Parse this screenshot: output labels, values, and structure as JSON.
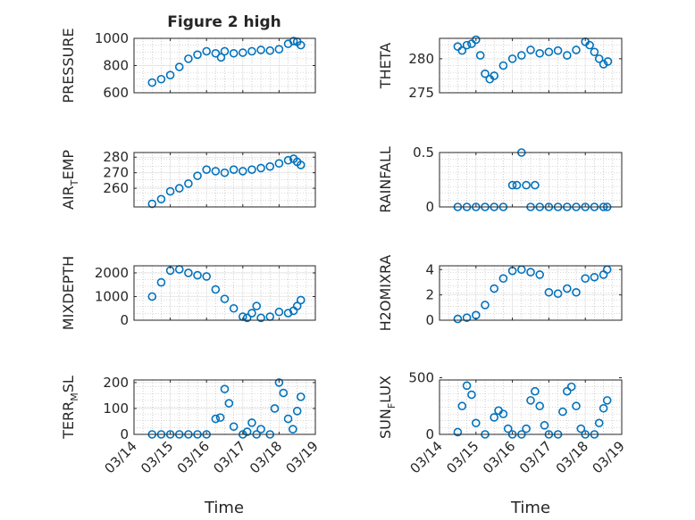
{
  "figure": {
    "title": "Figure 2 high",
    "x_axis_label": "Time",
    "x_tick_labels": [
      "03/14",
      "03/15",
      "03/16",
      "03/17",
      "03/18",
      "03/19"
    ]
  },
  "colors": {
    "marker": "#0072BD",
    "axis": "#262626",
    "grid": "#b0b0b0"
  },
  "chart_data": [
    {
      "type": "scatter",
      "ylabel": "PRESSURE",
      "ylim": [
        600,
        1000
      ],
      "yticks": [
        600,
        800,
        1000
      ],
      "grid": true,
      "x_dates": [
        "03/14 12:00",
        "03/14 18:00",
        "03/15 00:00",
        "03/15 06:00",
        "03/15 12:00",
        "03/15 18:00",
        "03/16 00:00",
        "03/16 06:00",
        "03/16 09:00",
        "03/16 12:00",
        "03/16 18:00",
        "03/17 00:00",
        "03/17 06:00",
        "03/17 12:00",
        "03/17 18:00",
        "03/18 00:00",
        "03/18 06:00",
        "03/18 09:00",
        "03/18 12:00",
        "03/18 15:00"
      ],
      "x": [
        0.5,
        0.75,
        1.0,
        1.25,
        1.5,
        1.75,
        2.0,
        2.25,
        2.4,
        2.5,
        2.75,
        3.0,
        3.25,
        3.5,
        3.75,
        4.0,
        4.25,
        4.4,
        4.5,
        4.6
      ],
      "y": [
        675,
        700,
        730,
        790,
        850,
        880,
        905,
        890,
        860,
        905,
        890,
        895,
        905,
        915,
        910,
        920,
        960,
        980,
        975,
        950
      ]
    },
    {
      "type": "scatter",
      "ylabel": "THETA",
      "ylim": [
        275,
        283
      ],
      "yticks": [
        275,
        280
      ],
      "grid": true,
      "x_dates": [
        "03/14 12:00",
        "03/14 15:00",
        "03/14 18:00",
        "03/14 21:00",
        "03/15 00:00",
        "03/15 03:00",
        "03/15 06:00",
        "03/15 09:00",
        "03/15 12:00",
        "03/15 18:00",
        "03/16 00:00",
        "03/16 06:00",
        "03/16 12:00",
        "03/16 18:00",
        "03/17 00:00",
        "03/17 06:00",
        "03/17 12:00",
        "03/17 18:00",
        "03/18 00:00",
        "03/18 03:00",
        "03/18 06:00",
        "03/18 09:00",
        "03/18 12:00",
        "03/18 15:00"
      ],
      "x": [
        0.5,
        0.62,
        0.75,
        0.88,
        1.0,
        1.12,
        1.25,
        1.38,
        1.5,
        1.75,
        2.0,
        2.25,
        2.5,
        2.75,
        3.0,
        3.25,
        3.5,
        3.75,
        4.0,
        4.12,
        4.25,
        4.38,
        4.5,
        4.62
      ],
      "y": [
        281.8,
        281.2,
        282,
        282.2,
        282.8,
        280.5,
        277.8,
        277,
        277.5,
        279,
        280,
        280.5,
        281.3,
        280.8,
        281,
        281.2,
        280.5,
        281.3,
        282.5,
        282,
        281,
        280,
        279.2,
        279.6
      ]
    },
    {
      "type": "scatter",
      "ylabel": "AIR_TEMP",
      "ylim": [
        248,
        283
      ],
      "yticks": [
        260,
        270,
        280
      ],
      "grid": true,
      "x_dates": [
        "03/14 12:00",
        "03/14 18:00",
        "03/15 00:00",
        "03/15 06:00",
        "03/15 12:00",
        "03/15 18:00",
        "03/16 00:00",
        "03/16 06:00",
        "03/16 12:00",
        "03/16 18:00",
        "03/17 00:00",
        "03/17 06:00",
        "03/17 12:00",
        "03/17 18:00",
        "03/18 00:00",
        "03/18 06:00",
        "03/18 09:00",
        "03/18 12:00",
        "03/18 15:00"
      ],
      "x": [
        0.5,
        0.75,
        1.0,
        1.25,
        1.5,
        1.75,
        2.0,
        2.25,
        2.5,
        2.75,
        3.0,
        3.25,
        3.5,
        3.75,
        4.0,
        4.25,
        4.4,
        4.5,
        4.6
      ],
      "y": [
        250,
        253,
        258,
        260,
        263,
        268,
        272,
        271,
        270,
        272,
        271,
        272,
        273,
        274,
        276,
        278,
        279,
        277,
        275
      ]
    },
    {
      "type": "scatter",
      "ylabel": "RAINFALL",
      "ylim": [
        0,
        0.5
      ],
      "yticks": [
        0,
        0.5
      ],
      "grid": true,
      "x_dates": [
        "03/14 12:00",
        "03/14 18:00",
        "03/15 00:00",
        "03/15 06:00",
        "03/15 12:00",
        "03/15 18:00",
        "03/16 00:00",
        "03/16 03:00",
        "03/16 06:00",
        "03/16 09:00",
        "03/16 12:00",
        "03/16 15:00",
        "03/16 18:00",
        "03/17 00:00",
        "03/17 06:00",
        "03/17 12:00",
        "03/17 18:00",
        "03/18 00:00",
        "03/18 06:00",
        "03/18 12:00",
        "03/18 15:00"
      ],
      "x": [
        0.5,
        0.75,
        1.0,
        1.25,
        1.5,
        1.75,
        2.0,
        2.12,
        2.25,
        2.38,
        2.5,
        2.62,
        2.75,
        3.0,
        3.25,
        3.5,
        3.75,
        4.0,
        4.25,
        4.5,
        4.6
      ],
      "y": [
        0,
        0,
        0,
        0,
        0,
        0,
        0.2,
        0.2,
        0.5,
        0.2,
        0,
        0.2,
        0,
        0,
        0,
        0,
        0,
        0,
        0,
        0,
        0
      ]
    },
    {
      "type": "scatter",
      "ylabel": "MIXDEPTH",
      "ylim": [
        0,
        2300
      ],
      "yticks": [
        0,
        1000,
        2000
      ],
      "grid": true,
      "x_dates": [
        "03/14 12:00",
        "03/14 18:00",
        "03/15 00:00",
        "03/15 06:00",
        "03/15 12:00",
        "03/15 18:00",
        "03/16 00:00",
        "03/16 06:00",
        "03/16 12:00",
        "03/16 18:00",
        "03/17 00:00",
        "03/17 03:00",
        "03/17 06:00",
        "03/17 09:00",
        "03/17 12:00",
        "03/17 18:00",
        "03/18 00:00",
        "03/18 06:00",
        "03/18 09:00",
        "03/18 12:00",
        "03/18 15:00"
      ],
      "x": [
        0.5,
        0.75,
        1.0,
        1.25,
        1.5,
        1.75,
        2.0,
        2.25,
        2.5,
        2.75,
        3.0,
        3.12,
        3.25,
        3.38,
        3.5,
        3.75,
        4.0,
        4.25,
        4.4,
        4.5,
        4.6
      ],
      "y": [
        1000,
        1600,
        2100,
        2150,
        2000,
        1900,
        1850,
        1300,
        900,
        500,
        150,
        100,
        300,
        600,
        100,
        150,
        350,
        300,
        400,
        600,
        850
      ]
    },
    {
      "type": "scatter",
      "ylabel": "H2OMIXRA",
      "ylim": [
        0,
        4.3
      ],
      "yticks": [
        0,
        2,
        4
      ],
      "grid": true,
      "x_dates": [
        "03/14 12:00",
        "03/14 18:00",
        "03/15 00:00",
        "03/15 06:00",
        "03/15 12:00",
        "03/15 18:00",
        "03/16 00:00",
        "03/16 06:00",
        "03/16 12:00",
        "03/16 18:00",
        "03/17 00:00",
        "03/17 06:00",
        "03/17 12:00",
        "03/17 18:00",
        "03/18 00:00",
        "03/18 06:00",
        "03/18 12:00",
        "03/18 15:00"
      ],
      "x": [
        0.5,
        0.75,
        1.0,
        1.25,
        1.5,
        1.75,
        2.0,
        2.25,
        2.5,
        2.75,
        3.0,
        3.25,
        3.5,
        3.75,
        4.0,
        4.25,
        4.5,
        4.6
      ],
      "y": [
        0.1,
        0.2,
        0.4,
        1.2,
        2.5,
        3.3,
        3.9,
        4.0,
        3.8,
        3.6,
        2.2,
        2.1,
        2.5,
        2.2,
        3.3,
        3.4,
        3.6,
        4.0
      ]
    },
    {
      "type": "scatter",
      "ylabel": "TERR_MSL",
      "ylim": [
        0,
        210
      ],
      "yticks": [
        0,
        100,
        200
      ],
      "grid": true,
      "x_dates": [
        "03/14 12:00",
        "03/14 18:00",
        "03/15 00:00",
        "03/15 06:00",
        "03/15 12:00",
        "03/15 18:00",
        "03/16 00:00",
        "03/16 06:00",
        "03/16 09:00",
        "03/16 12:00",
        "03/16 15:00",
        "03/16 18:00",
        "03/17 00:00",
        "03/17 03:00",
        "03/17 06:00",
        "03/17 09:00",
        "03/17 12:00",
        "03/17 18:00",
        "03/17 21:00",
        "03/18 00:00",
        "03/18 03:00",
        "03/18 06:00",
        "03/18 09:00",
        "03/18 12:00",
        "03/18 15:00"
      ],
      "x": [
        0.5,
        0.75,
        1.0,
        1.25,
        1.5,
        1.75,
        2.0,
        2.25,
        2.38,
        2.5,
        2.62,
        2.75,
        3.0,
        3.12,
        3.25,
        3.38,
        3.5,
        3.75,
        3.88,
        4.0,
        4.12,
        4.25,
        4.38,
        4.5,
        4.6
      ],
      "y": [
        0,
        0,
        0,
        0,
        0,
        0,
        0,
        60,
        65,
        175,
        120,
        30,
        0,
        10,
        45,
        0,
        20,
        0,
        100,
        200,
        160,
        60,
        20,
        90,
        145
      ]
    },
    {
      "type": "scatter",
      "ylabel": "SUN_FLUX",
      "ylim": [
        0,
        480
      ],
      "yticks": [
        0,
        500
      ],
      "grid": true,
      "x_dates": [
        "03/14 12:00",
        "03/14 15:00",
        "03/14 18:00",
        "03/14 21:00",
        "03/15 00:00",
        "03/15 06:00",
        "03/15 12:00",
        "03/15 15:00",
        "03/15 18:00",
        "03/15 21:00",
        "03/16 00:00",
        "03/16 06:00",
        "03/16 09:00",
        "03/16 12:00",
        "03/16 15:00",
        "03/16 18:00",
        "03/16 21:00",
        "03/17 00:00",
        "03/17 06:00",
        "03/17 09:00",
        "03/17 12:00",
        "03/17 15:00",
        "03/17 18:00",
        "03/17 21:00",
        "03/18 00:00",
        "03/18 06:00",
        "03/18 09:00",
        "03/18 12:00",
        "03/18 15:00"
      ],
      "x": [
        0.5,
        0.62,
        0.75,
        0.88,
        1.0,
        1.25,
        1.5,
        1.62,
        1.75,
        1.88,
        2.0,
        2.25,
        2.38,
        2.5,
        2.62,
        2.75,
        2.88,
        3.0,
        3.25,
        3.38,
        3.5,
        3.62,
        3.75,
        3.88,
        4.0,
        4.25,
        4.38,
        4.5,
        4.6
      ],
      "y": [
        20,
        250,
        430,
        350,
        100,
        0,
        150,
        210,
        180,
        50,
        0,
        0,
        50,
        300,
        380,
        250,
        80,
        0,
        0,
        200,
        380,
        420,
        250,
        50,
        0,
        0,
        100,
        230,
        300
      ]
    }
  ]
}
